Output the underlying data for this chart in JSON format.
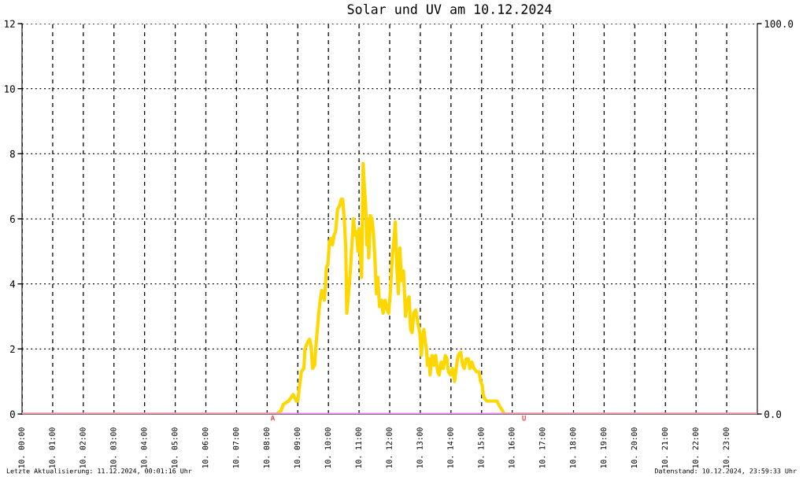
{
  "chart_data": {
    "type": "line",
    "title": "Solar und UV am 10.12.2024",
    "xlim": [
      "2024-12-10T00:00",
      "2024-12-11T00:00"
    ],
    "xticks": [
      {
        "value": "2024-12-10T00:00",
        "label": "10. 00:00"
      },
      {
        "value": "2024-12-10T01:00",
        "label": "10. 01:00"
      },
      {
        "value": "2024-12-10T02:00",
        "label": "10. 02:00"
      },
      {
        "value": "2024-12-10T03:00",
        "label": "10. 03:00"
      },
      {
        "value": "2024-12-10T04:00",
        "label": "10. 04:00"
      },
      {
        "value": "2024-12-10T05:00",
        "label": "10. 05:00"
      },
      {
        "value": "2024-12-10T06:00",
        "label": "10. 06:00"
      },
      {
        "value": "2024-12-10T07:00",
        "label": "10. 07:00"
      },
      {
        "value": "2024-12-10T08:00",
        "label": "10. 08:00"
      },
      {
        "value": "2024-12-10T09:00",
        "label": "10. 09:00"
      },
      {
        "value": "2024-12-10T10:00",
        "label": "10. 10:00"
      },
      {
        "value": "2024-12-10T11:00",
        "label": "10. 11:00"
      },
      {
        "value": "2024-12-10T12:00",
        "label": "10. 12:00"
      },
      {
        "value": "2024-12-10T13:00",
        "label": "10. 13:00"
      },
      {
        "value": "2024-12-10T14:00",
        "label": "10. 14:00"
      },
      {
        "value": "2024-12-10T15:00",
        "label": "10. 15:00"
      },
      {
        "value": "2024-12-10T16:00",
        "label": "10. 16:00"
      },
      {
        "value": "2024-12-10T17:00",
        "label": "10. 17:00"
      },
      {
        "value": "2024-12-10T18:00",
        "label": "10. 18:00"
      },
      {
        "value": "2024-12-10T19:00",
        "label": "10. 19:00"
      },
      {
        "value": "2024-12-10T20:00",
        "label": "10. 20:00"
      },
      {
        "value": "2024-12-10T21:00",
        "label": "10. 21:00"
      },
      {
        "value": "2024-12-10T22:00",
        "label": "10. 22:00"
      },
      {
        "value": "2024-12-10T23:00",
        "label": "10. 23:00"
      }
    ],
    "ylim": [
      0,
      12
    ],
    "yticks": [
      0,
      2,
      4,
      6,
      8,
      10,
      12
    ],
    "y2lim": [
      0,
      100
    ],
    "y2ticks": [
      {
        "value": 0,
        "label": "0.0"
      },
      {
        "value": 100,
        "label": "100.0"
      }
    ],
    "grid": true,
    "series": [
      {
        "color": "#ffd700",
        "x": [
          "2024-12-10T00:00",
          "2024-12-10T08:19",
          "2024-12-10T08:27",
          "2024-12-10T08:32",
          "2024-12-10T08:42",
          "2024-12-10T08:51",
          "2024-12-10T08:57",
          "2024-12-10T09:00",
          "2024-12-10T09:03",
          "2024-12-10T09:07",
          "2024-12-10T09:12",
          "2024-12-10T09:14",
          "2024-12-10T09:19",
          "2024-12-10T09:23",
          "2024-12-10T09:26",
          "2024-12-10T09:29",
          "2024-12-10T09:33",
          "2024-12-10T09:36",
          "2024-12-10T09:39",
          "2024-12-10T09:41",
          "2024-12-10T09:44",
          "2024-12-10T09:47",
          "2024-12-10T09:52",
          "2024-12-10T09:54",
          "2024-12-10T09:56",
          "2024-12-10T09:59",
          "2024-12-10T10:02",
          "2024-12-10T10:05",
          "2024-12-10T10:08",
          "2024-12-10T10:11",
          "2024-12-10T10:14",
          "2024-12-10T10:18",
          "2024-12-10T10:22",
          "2024-12-10T10:25",
          "2024-12-10T10:28",
          "2024-12-10T10:31",
          "2024-12-10T10:34",
          "2024-12-10T10:36",
          "2024-12-10T10:40",
          "2024-12-10T10:43",
          "2024-12-10T10:46",
          "2024-12-10T10:49",
          "2024-12-10T10:52",
          "2024-12-10T10:55",
          "2024-12-10T10:58",
          "2024-12-10T11:00",
          "2024-12-10T11:02",
          "2024-12-10T11:05",
          "2024-12-10T11:08",
          "2024-12-10T11:10",
          "2024-12-10T11:13",
          "2024-12-10T11:15",
          "2024-12-10T11:17",
          "2024-12-10T11:19",
          "2024-12-10T11:22",
          "2024-12-10T11:25",
          "2024-12-10T11:28",
          "2024-12-10T11:31",
          "2024-12-10T11:34",
          "2024-12-10T11:37",
          "2024-12-10T11:40",
          "2024-12-10T11:44",
          "2024-12-10T11:47",
          "2024-12-10T11:51",
          "2024-12-10T11:55",
          "2024-12-10T11:58",
          "2024-12-10T12:01",
          "2024-12-10T12:05",
          "2024-12-10T12:09",
          "2024-12-10T12:11",
          "2024-12-10T12:14",
          "2024-12-10T12:17",
          "2024-12-10T12:20",
          "2024-12-10T12:23",
          "2024-12-10T12:27",
          "2024-12-10T12:31",
          "2024-12-10T12:35",
          "2024-12-10T12:38",
          "2024-12-10T12:41",
          "2024-12-10T12:44",
          "2024-12-10T12:47",
          "2024-12-10T12:51",
          "2024-12-10T12:55",
          "2024-12-10T12:59",
          "2024-12-10T13:02",
          "2024-12-10T13:04",
          "2024-12-10T13:07",
          "2024-12-10T13:09",
          "2024-12-10T13:12",
          "2024-12-10T13:14",
          "2024-12-10T13:17",
          "2024-12-10T13:19",
          "2024-12-10T13:23",
          "2024-12-10T13:27",
          "2024-12-10T13:30",
          "2024-12-10T13:34",
          "2024-12-10T13:37",
          "2024-12-10T13:41",
          "2024-12-10T13:45",
          "2024-12-10T13:49",
          "2024-12-10T13:52",
          "2024-12-10T13:55",
          "2024-12-10T13:59",
          "2024-12-10T14:03",
          "2024-12-10T14:07",
          "2024-12-10T14:11",
          "2024-12-10T14:14",
          "2024-12-10T14:19",
          "2024-12-10T14:23",
          "2024-12-10T14:26",
          "2024-12-10T14:30",
          "2024-12-10T14:34",
          "2024-12-10T14:37",
          "2024-12-10T14:41",
          "2024-12-10T14:45",
          "2024-12-10T14:50",
          "2024-12-10T14:55",
          "2024-12-10T14:58",
          "2024-12-10T15:01",
          "2024-12-10T15:03",
          "2024-12-10T15:05",
          "2024-12-10T15:10",
          "2024-12-10T15:15",
          "2024-12-10T15:23",
          "2024-12-10T15:30",
          "2024-12-10T15:33",
          "2024-12-10T15:37",
          "2024-12-10T15:41",
          "2024-12-10T15:44",
          "2024-12-11T00:00"
        ],
        "values": [
          0,
          0,
          0.1,
          0.3,
          0.4,
          0.6,
          0.4,
          0.4,
          0.8,
          1.3,
          1.4,
          2.0,
          2.2,
          2.3,
          2.1,
          1.4,
          1.5,
          2.2,
          2.7,
          3.1,
          3.5,
          3.8,
          3.5,
          3.9,
          4.5,
          4.6,
          5.3,
          5.4,
          5.2,
          5.5,
          5.6,
          6.3,
          6.4,
          6.6,
          6.6,
          6.0,
          5.1,
          3.1,
          3.8,
          4.4,
          5.2,
          6.0,
          5.5,
          5.6,
          5.0,
          5.7,
          5.0,
          4.2,
          7.7,
          7.1,
          6.4,
          5.2,
          6.0,
          4.8,
          6.1,
          6.0,
          5.6,
          4.8,
          3.7,
          4.2,
          3.3,
          3.5,
          3.1,
          3.5,
          3.2,
          3.1,
          3.7,
          4.8,
          5.5,
          5.9,
          4.5,
          3.7,
          5.1,
          4.1,
          4.4,
          3.0,
          3.5,
          3.6,
          2.6,
          2.5,
          3.1,
          3.2,
          2.8,
          2.5,
          1.8,
          2.3,
          2.6,
          2.3,
          2.0,
          1.5,
          1.7,
          1.2,
          1.8,
          1.5,
          1.8,
          1.3,
          1.2,
          1.6,
          1.4,
          1.8,
          1.7,
          1.3,
          1.2,
          1.4,
          1.0,
          1.5,
          1.8,
          1.9,
          1.5,
          1.4,
          1.7,
          1.7,
          1.4,
          1.6,
          1.4,
          1.3,
          1.3,
          1.0,
          0.9,
          0.6,
          0.5,
          0.4,
          0.4,
          0.4,
          0.4,
          0.3,
          0.2,
          0.1,
          0,
          0
        ]
      },
      {
        "color": "#ee82ee",
        "axis": "y2",
        "x": [
          "2024-12-10T00:00",
          "2024-12-11T00:00"
        ],
        "values": [
          0,
          0
        ]
      }
    ],
    "annotations": [
      {
        "text": "A",
        "x": "2024-12-10T08:11",
        "y": 0
      },
      {
        "text": "U",
        "x": "2024-12-10T16:23",
        "y": 0
      },
      "Letzte Aktualisierung: 11.12.2024, 00:01:16 Uhr",
      "Datenstand: 10.12.2024, 23:59:33 Uhr"
    ]
  }
}
